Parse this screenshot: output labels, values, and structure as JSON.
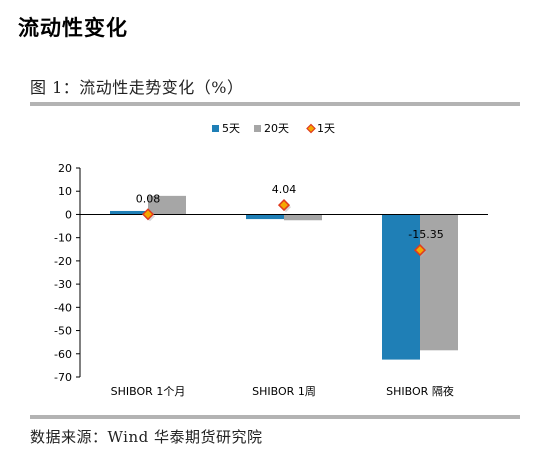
{
  "header": {
    "section_title": "流动性变化",
    "figure_title": "图 1：流动性走势变化（%）",
    "source": "数据来源：Wind 华泰期货研究院"
  },
  "chart_data": {
    "type": "bar",
    "categories": [
      "SHIBOR 1个月",
      "SHIBOR 1周",
      "SHIBOR 隔夜"
    ],
    "series": [
      {
        "name": "5天",
        "kind": "bar",
        "color": "#1f7fb6",
        "values": [
          1.5,
          -2.0,
          -62.5
        ]
      },
      {
        "name": "20天",
        "kind": "bar",
        "color": "#a6a6a6",
        "values": [
          8.0,
          -2.5,
          -58.5
        ]
      },
      {
        "name": "1天",
        "kind": "marker",
        "color": "#f5a800",
        "values": [
          0.08,
          4.04,
          -15.35
        ]
      }
    ],
    "data_labels": [
      "0.08",
      "4.04",
      "-15.35"
    ],
    "ylim": [
      -70,
      20
    ],
    "yticks": [
      "20",
      "10",
      "0",
      "-10",
      "-20",
      "-30",
      "-40",
      "-50",
      "-60",
      "-70"
    ],
    "legend_position": "top"
  }
}
